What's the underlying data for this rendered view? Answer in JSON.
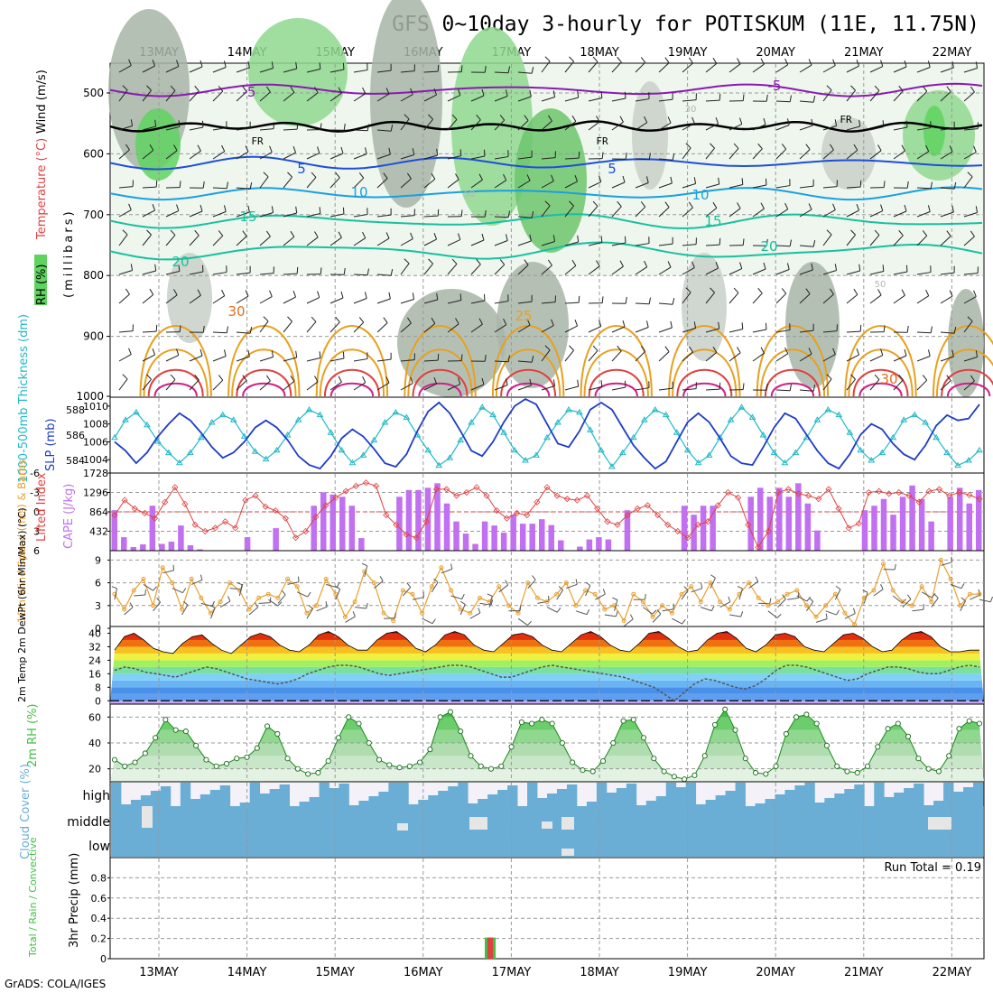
{
  "title": "GFS 0~10day 3-hourly for POTISKUM (11E, 11.75N)",
  "footer": "GrADS: COLA/IGES",
  "run_total_label": "Run Total = 0.19",
  "dates": [
    "13MAY",
    "14MAY",
    "15MAY",
    "16MAY",
    "17MAY",
    "18MAY",
    "19MAY",
    "20MAY",
    "21MAY",
    "22MAY"
  ],
  "colors": {
    "rh_green": "#5fd35f",
    "rh_grey": "#a8b5a8",
    "temp_purple": "#8a1ab0",
    "temp_blue": "#1e4ed8",
    "temp_cyan": "#1aa0e0",
    "temp_teal": "#18c0a0",
    "temp_orange": "#e8a020",
    "temp_red": "#e04040",
    "temp_magenta": "#d0208a",
    "thickness": "#20b8c8",
    "slp": "#1e3cc8",
    "lifted": "#e04040",
    "cape": "#c070f0",
    "wind_speed": "#e8a030",
    "rh2m": "#40c040",
    "cloud": "#6aaed6",
    "rain_green": "#40c040",
    "rain_red": "#e04040"
  },
  "panels": {
    "upper": {
      "ylabel_parts": [
        "RH (%)",
        "Temperature (°C)",
        "Wind (m/s)"
      ],
      "ylabel_sub": "(millibars)",
      "pressure_ticks": [
        "500",
        "600",
        "700",
        "800",
        "900",
        "1000"
      ],
      "contour_labels": [
        "-5",
        "-5",
        "FR",
        "FR",
        "FR",
        "5",
        "5",
        "10",
        "10",
        "15",
        "15",
        "20",
        "20",
        "30",
        "25",
        "30",
        "50",
        "50",
        "30"
      ]
    },
    "slp": {
      "ylabel_left": "1000-500mb Thickness (dm)",
      "ylabel_right": "SLP (mb)",
      "left_ticks": [
        "588",
        "586",
        "584"
      ],
      "right_ticks": [
        "1010",
        "1008",
        "1006",
        "1004"
      ]
    },
    "cape": {
      "ylabel_left": "Lifted Index",
      "ylabel_right": "CAPE (J/kg)",
      "left_ticks": [
        "-6",
        "-3",
        "0",
        "3",
        "6"
      ],
      "right_ticks": [
        "1728",
        "1296",
        "864",
        "432"
      ]
    },
    "wind": {
      "ylabel": "10m Wind Speed (m/s) & Barbs",
      "ticks": [
        "9",
        "6",
        "3",
        "0"
      ]
    },
    "temp2m": {
      "ylabel": "2m Temp 2m DewPt (6hr Min/Max) (°C)",
      "ticks": [
        "40",
        "32",
        "24",
        "16",
        "8",
        "0"
      ]
    },
    "rh2m": {
      "ylabel": "2m RH (%)",
      "ticks": [
        "60",
        "40",
        "20"
      ]
    },
    "cloud": {
      "ylabel": "Cloud Cover (%)",
      "levels": [
        "high",
        "middle",
        "low"
      ]
    },
    "precip": {
      "ylabel": "3hr Precip (mm)",
      "legend": "Total / Rain / Convective",
      "ticks": [
        "0.8",
        "0.6",
        "0.4",
        "0.2",
        "0"
      ]
    }
  },
  "chart_data": [
    {
      "type": "line",
      "title": "1000-500mb Thickness (dm) / SLP (mb)",
      "series": [
        {
          "name": "1000-500mb Thickness (dm)",
          "values": [
            585.8,
            587.2,
            587.8,
            586.8,
            585.5,
            584.6,
            583.8,
            584.6,
            585.8,
            587.0,
            587.6,
            587.2,
            585.9,
            584.7,
            584.1,
            584.8,
            586.0,
            587.2,
            588.0,
            587.6,
            586.2,
            584.8,
            583.8,
            584.4,
            585.6,
            587.0,
            587.8,
            587.4,
            586.0,
            584.8,
            583.6,
            584.2,
            585.6,
            587.0,
            588.2,
            587.6,
            586.2,
            584.8,
            584.0,
            584.4,
            585.8,
            587.0,
            588.0,
            587.8,
            586.4,
            584.8,
            583.5,
            584.6,
            585.8,
            587.2,
            588.0,
            587.6,
            586.2,
            584.8,
            583.8,
            584.4,
            585.8,
            587.2,
            588.2,
            587.4,
            586.0,
            584.6,
            583.8,
            584.6,
            585.8,
            587.2,
            588.0,
            587.6,
            586.2,
            584.8,
            584.0,
            584.6,
            585.8,
            587.2,
            587.6,
            587.0,
            585.8,
            584.6,
            583.6,
            584.0,
            584.8
          ]
        },
        {
          "name": "SLP (mb)",
          "values": [
            1006.0,
            1005.0,
            1003.6,
            1004.8,
            1006.6,
            1008.0,
            1009.2,
            1008.4,
            1007.0,
            1005.4,
            1004.2,
            1004.8,
            1006.0,
            1007.6,
            1008.4,
            1007.6,
            1006.2,
            1004.4,
            1003.4,
            1003.0,
            1004.4,
            1006.4,
            1007.4,
            1006.6,
            1005.2,
            1003.6,
            1003.2,
            1004.6,
            1007.2,
            1009.4,
            1010.4,
            1009.2,
            1007.2,
            1005.0,
            1004.4,
            1006.0,
            1008.2,
            1010.0,
            1010.8,
            1010.2,
            1008.0,
            1005.8,
            1005.4,
            1007.2,
            1009.6,
            1010.4,
            1009.6,
            1007.6,
            1005.6,
            1004.2,
            1003.0,
            1003.8,
            1006.0,
            1008.2,
            1009.2,
            1008.2,
            1006.4,
            1004.4,
            1003.6,
            1003.4,
            1005.4,
            1007.6,
            1009.2,
            1008.6,
            1006.8,
            1005.0,
            1003.6,
            1003.0,
            1004.6,
            1006.8,
            1008.0,
            1007.4,
            1005.8,
            1004.6,
            1004.0,
            1005.6,
            1007.8,
            1009.0,
            1008.4,
            1008.6,
            1010.2
          ]
        }
      ],
      "ylim_left": [
        583,
        589
      ],
      "ylim_right": [
        1002.5,
        1011
      ]
    },
    {
      "type": "bar",
      "title": "Lifted Index / CAPE (J/kg)",
      "series": [
        {
          "name": "CAPE (J/kg)",
          "values": [
            900,
            300,
            80,
            140,
            1000,
            150,
            200,
            560,
            120,
            30,
            0,
            0,
            0,
            0,
            300,
            0,
            0,
            500,
            0,
            0,
            0,
            1000,
            1300,
            1250,
            1200,
            1000,
            280,
            0,
            0,
            0,
            1200,
            1350,
            1350,
            1400,
            1500,
            1050,
            650,
            380,
            150,
            650,
            560,
            400,
            800,
            600,
            600,
            700,
            570,
            230,
            0,
            90,
            250,
            300,
            250,
            0,
            900,
            0,
            0,
            0,
            0,
            0,
            1000,
            800,
            1000,
            1000,
            0,
            0,
            0,
            1200,
            1400,
            1200,
            1400,
            1200,
            1500,
            1050,
            450,
            0,
            0,
            0,
            0,
            900,
            1000,
            1150,
            800,
            1200,
            1450,
            1150,
            650,
            0,
            1200,
            1400,
            1050,
            1350
          ]
        },
        {
          "name": "Lifted Index",
          "values": [
            0.5,
            -1.8,
            -0.5,
            0.2,
            1.0,
            -1.5,
            -3.8,
            -1.2,
            2.0,
            3.0,
            2.5,
            1.5,
            2.5,
            -1.8,
            -2.5,
            -0.8,
            -0.2,
            1.0,
            4.0,
            3.0,
            0.8,
            -1.0,
            -2.2,
            -3.2,
            -4.0,
            -4.5,
            -4.0,
            0.5,
            2.0,
            3.5,
            4.0,
            1.5,
            -3.5,
            -3.5,
            -2.5,
            -3.0,
            -3.8,
            -2.5,
            -0.2,
            1.0,
            0.2,
            0.5,
            -1.5,
            -3.8,
            -2.5,
            -2.0,
            -1.8,
            -2.5,
            -0.5,
            1.5,
            2.0,
            0.5,
            -0.5,
            -1.0,
            0.5,
            2.0,
            3.0,
            4.0,
            2.0,
            1.5,
            -1.0,
            -3.0,
            -2.2,
            2.0,
            5.5,
            3.0,
            -3.0,
            -3.5,
            -2.8,
            -2.5,
            -2.0,
            -3.5,
            -0.5,
            2.5,
            1.8,
            -3.0,
            -3.2,
            -2.8,
            -3.0,
            -2.5,
            -1.5,
            -3.2,
            -3.5,
            -2.5,
            -3.0,
            -2.6,
            -2.0
          ]
        }
      ],
      "ylim_left": [
        6,
        -6
      ],
      "ylim_right": [
        0,
        1728
      ]
    },
    {
      "type": "line",
      "title": "10m Wind Speed (m/s)",
      "series": [
        {
          "name": "10m Wind Speed (m/s)",
          "values": [
            4.5,
            2.5,
            5.0,
            6.5,
            3.0,
            8.0,
            6.0,
            2.5,
            6.5,
            4.0,
            2.0,
            3.5,
            6.0,
            5.0,
            2.5,
            4.0,
            4.5,
            4.0,
            6.5,
            5.5,
            2.0,
            3.0,
            6.5,
            4.5,
            1.5,
            3.5,
            7.5,
            6.0,
            2.0,
            1.0,
            5.0,
            4.5,
            2.0,
            5.5,
            8.0,
            5.0,
            2.5,
            2.0,
            4.0,
            3.5,
            5.5,
            3.0,
            2.0,
            6.0,
            4.0,
            3.5,
            4.5,
            6.0,
            3.0,
            5.0,
            4.5,
            2.5,
            3.0,
            1.0,
            4.5,
            3.5,
            1.5,
            3.0,
            2.0,
            4.5,
            5.5,
            3.5,
            6.0,
            3.5,
            2.5,
            4.5,
            6.0,
            4.0,
            3.0,
            3.5,
            4.5,
            5.0,
            3.0,
            1.5,
            3.0,
            4.5,
            2.0,
            0.5,
            4.0,
            5.0,
            8.5,
            5.0,
            3.5,
            3.0,
            5.5,
            3.5,
            9.0,
            6.5,
            3.0,
            4.5,
            4.5
          ]
        }
      ],
      "ylim": [
        0,
        10
      ]
    },
    {
      "type": "line",
      "title": "2m Temp / 2m DewPt (°C)",
      "series": [
        {
          "name": "2m Temp",
          "values": [
            30,
            38,
            40,
            36,
            31,
            29,
            28,
            34,
            38,
            39,
            34,
            30,
            28,
            33,
            38,
            40,
            38,
            33,
            30,
            29,
            33,
            39,
            41,
            38,
            33,
            30,
            30,
            36,
            40,
            41,
            37,
            31,
            29,
            33,
            39,
            41,
            39,
            33,
            30,
            29,
            34,
            39,
            40,
            38,
            33,
            30,
            29,
            34,
            39,
            41,
            38,
            33,
            30,
            29,
            34,
            40,
            41,
            37,
            32,
            29,
            30,
            36,
            40,
            41,
            37,
            31,
            29,
            33,
            39,
            40,
            38,
            32,
            30,
            29,
            34,
            39,
            40,
            37,
            32,
            29,
            30,
            36,
            40,
            41,
            38,
            32,
            29,
            29,
            30,
            30
          ]
        },
        {
          "name": "2m DewPt",
          "values": [
            18,
            20,
            19,
            17,
            16,
            15,
            14,
            16,
            18,
            20,
            19,
            17,
            15,
            13,
            12,
            11,
            10,
            11,
            13,
            16,
            18,
            20,
            21,
            21,
            20,
            18,
            16,
            15,
            16,
            17,
            18,
            19,
            20,
            21,
            21,
            20,
            18,
            16,
            14,
            14,
            16,
            18,
            20,
            21,
            20,
            19,
            18,
            17,
            16,
            15,
            14,
            12,
            10,
            8,
            4,
            0,
            5,
            10,
            13,
            12,
            10,
            8,
            7,
            9,
            13,
            18,
            21,
            21,
            20,
            18,
            16,
            14,
            12,
            13,
            16,
            18,
            20,
            20,
            19,
            17,
            16,
            16,
            18,
            20,
            21,
            20
          ]
        }
      ],
      "ylim": [
        -2,
        44
      ]
    },
    {
      "type": "area",
      "title": "2m RH (%)",
      "series": [
        {
          "name": "2m RH",
          "values": [
            27,
            22,
            25,
            32,
            44,
            58,
            50,
            49,
            38,
            27,
            22,
            24,
            28,
            29,
            36,
            53,
            47,
            28,
            20,
            16,
            17,
            26,
            44,
            60,
            55,
            40,
            27,
            23,
            21,
            22,
            25,
            35,
            60,
            64,
            49,
            30,
            22,
            20,
            22,
            37,
            56,
            55,
            58,
            55,
            40,
            25,
            19,
            18,
            26,
            40,
            57,
            58,
            44,
            28,
            18,
            14,
            12,
            15,
            30,
            54,
            66,
            50,
            28,
            17,
            16,
            22,
            47,
            60,
            62,
            55,
            38,
            22,
            18,
            17,
            22,
            37,
            51,
            55,
            45,
            28,
            20,
            18,
            30,
            51,
            57,
            55
          ]
        }
      ],
      "ylim": [
        10,
        70
      ]
    },
    {
      "type": "heatmap",
      "title": "Cloud Cover (%)",
      "categories": [
        "high",
        "middle",
        "low"
      ]
    },
    {
      "type": "bar",
      "title": "3hr Precip (mm)",
      "series": [
        {
          "name": "Total",
          "values": [
            0.19
          ]
        },
        {
          "name": "Convective",
          "values": [
            0.19
          ]
        }
      ],
      "x": [
        "16MAY-17MAY"
      ],
      "ylim": [
        0,
        1.0
      ]
    }
  ]
}
